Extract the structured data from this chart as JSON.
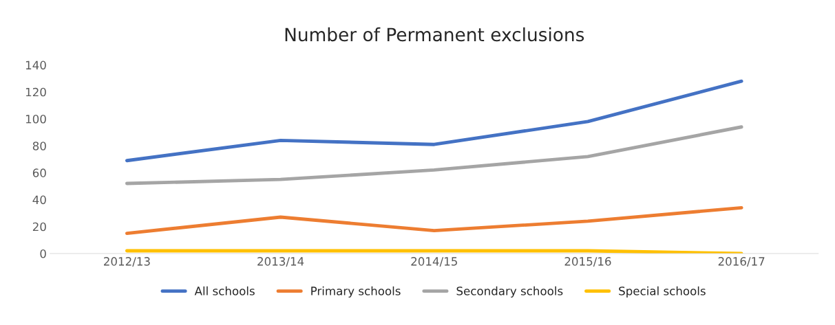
{
  "chart_data": {
    "type": "line",
    "title": "Number of Permanent exclusions",
    "categories": [
      "2012/13",
      "2013/14",
      "2014/15",
      "2015/16",
      "2016/17"
    ],
    "series": [
      {
        "name": "All schools",
        "color": "#4472c4",
        "values": [
          69,
          84,
          81,
          98,
          128
        ]
      },
      {
        "name": "Primary schools",
        "color": "#ed7d31",
        "values": [
          15,
          27,
          17,
          24,
          34
        ]
      },
      {
        "name": "Secondary schools",
        "color": "#a5a5a5",
        "values": [
          52,
          55,
          62,
          72,
          94
        ]
      },
      {
        "name": "Special schools",
        "color": "#ffc000",
        "values": [
          2,
          2,
          2,
          2,
          0
        ]
      }
    ],
    "ylim": [
      0,
      140
    ],
    "yticks": [
      0,
      20,
      40,
      60,
      80,
      100,
      120,
      140
    ],
    "grid": false,
    "legend": "bottom",
    "marker": "none",
    "line_style": "solid"
  }
}
